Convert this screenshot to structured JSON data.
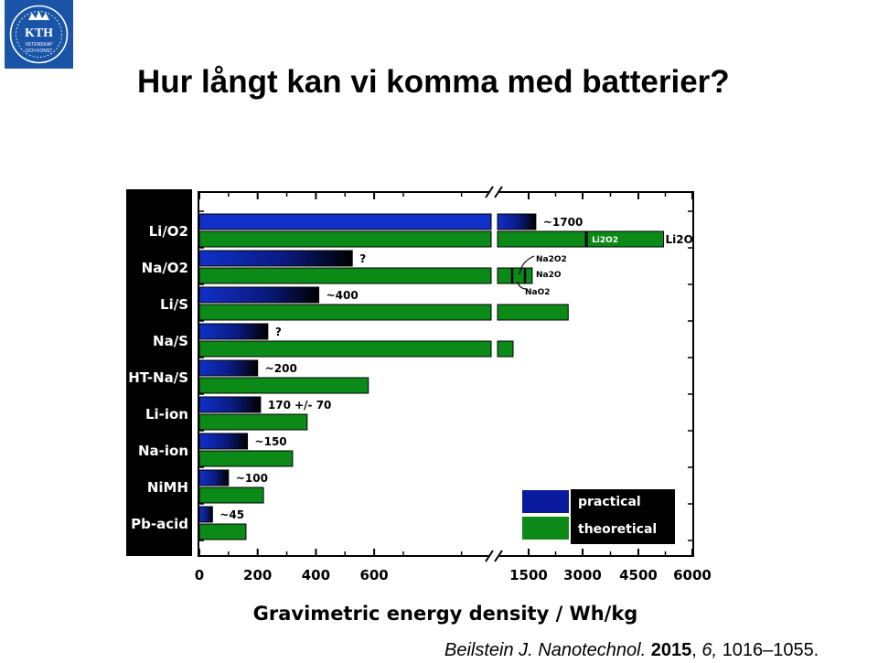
{
  "slide": {
    "title": "Hur långt kan vi komma med batterier?",
    "logo_text": "KTH",
    "logo_subtext_1": "VETENSKAP",
    "logo_subtext_2": "OCH KONST",
    "citation_journal": "Beilstein J. Nanotechnol.",
    "citation_year": "2015",
    "citation_volume": "6,",
    "citation_pages": "1016–1055."
  },
  "chart_data": {
    "type": "bar",
    "orientation": "horizontal",
    "xlabel": "Gravimetric energy density / Wh/kg",
    "x_axis_broken": true,
    "x_ticks_left": [
      "0",
      "200",
      "400",
      "600"
    ],
    "x_ticks_right": [
      "1500",
      "3000",
      "4500",
      "6000"
    ],
    "categories": [
      "Li/O2",
      "Na/O2",
      "Li/S",
      "Na/S",
      "HT-Na/S",
      "Li-ion",
      "Na-ion",
      "NiMH",
      "Pb-acid"
    ],
    "series": [
      {
        "name": "practical",
        "color": "#0a1a9c",
        "values": [
          1700,
          525,
          410,
          235,
          200,
          210,
          165,
          100,
          45
        ],
        "labels": [
          "~1700",
          "?",
          "~400",
          "?",
          "~200",
          "170 +/- 70",
          "~150",
          "~100",
          "~45"
        ]
      },
      {
        "name": "theoretical",
        "color": "#0c8a18",
        "values": [
          5200,
          1600,
          2600,
          1250,
          580,
          370,
          320,
          220,
          160
        ],
        "labels": [
          "Li2O",
          "",
          "",
          "",
          "",
          "",
          "",
          "",
          ""
        ]
      }
    ],
    "annotations": {
      "li_o2_theoretical_marker": "Li2O2",
      "na_o2_products": [
        "Na2O2",
        "Na2O",
        "NaO2"
      ]
    },
    "legend_position": "bottom-right",
    "category_label_background": "#000000"
  }
}
